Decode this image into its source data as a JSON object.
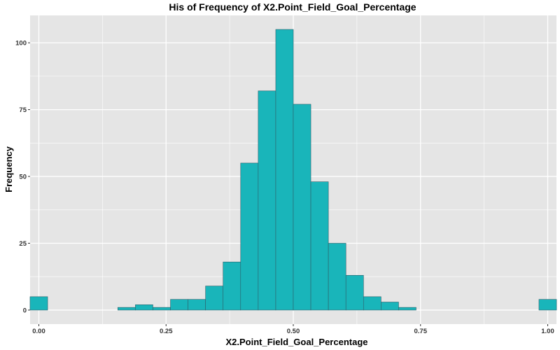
{
  "chart_data": {
    "type": "bar",
    "title": "His of Frequency of X2.Point_Field_Goal_Percentage",
    "xlabel": "X2.Point_Field_Goal_Percentage",
    "ylabel": "Frequency",
    "xlim": [
      -0.0172,
      1.0172
    ],
    "ylim": [
      -5.25,
      110.25
    ],
    "grid": true,
    "legend": "none",
    "x_ticks": [
      0.0,
      0.25,
      0.5,
      0.75,
      1.0
    ],
    "x_tick_labels": [
      "0.00",
      "0.25",
      "0.50",
      "0.75",
      "1.00"
    ],
    "y_ticks": [
      0,
      25,
      50,
      75,
      100
    ],
    "y_tick_labels": [
      "0",
      "25",
      "50",
      "75",
      "100"
    ],
    "bin_width": 0.0345,
    "bin_centers": [
      0.0,
      0.0345,
      0.069,
      0.1034,
      0.1379,
      0.1724,
      0.2069,
      0.2414,
      0.2759,
      0.3103,
      0.3448,
      0.3793,
      0.4138,
      0.4483,
      0.4828,
      0.5172,
      0.5517,
      0.5862,
      0.6207,
      0.6552,
      0.6897,
      0.7241,
      0.7586,
      0.7931,
      0.8276,
      0.8621,
      0.8966,
      0.931,
      0.9655,
      1.0
    ],
    "values": [
      5,
      0,
      0,
      0,
      0,
      1,
      2,
      1,
      4,
      4,
      9,
      18,
      55,
      82,
      105,
      77,
      48,
      25,
      13,
      5,
      3,
      1,
      0,
      0,
      0,
      0,
      0,
      0,
      0,
      4
    ],
    "colors": {
      "bar_fill": "#19B5BA",
      "bar_stroke": "#2F5F6A",
      "panel_background": "#E5E5E5",
      "grid_line": "#FFFFFF"
    }
  }
}
